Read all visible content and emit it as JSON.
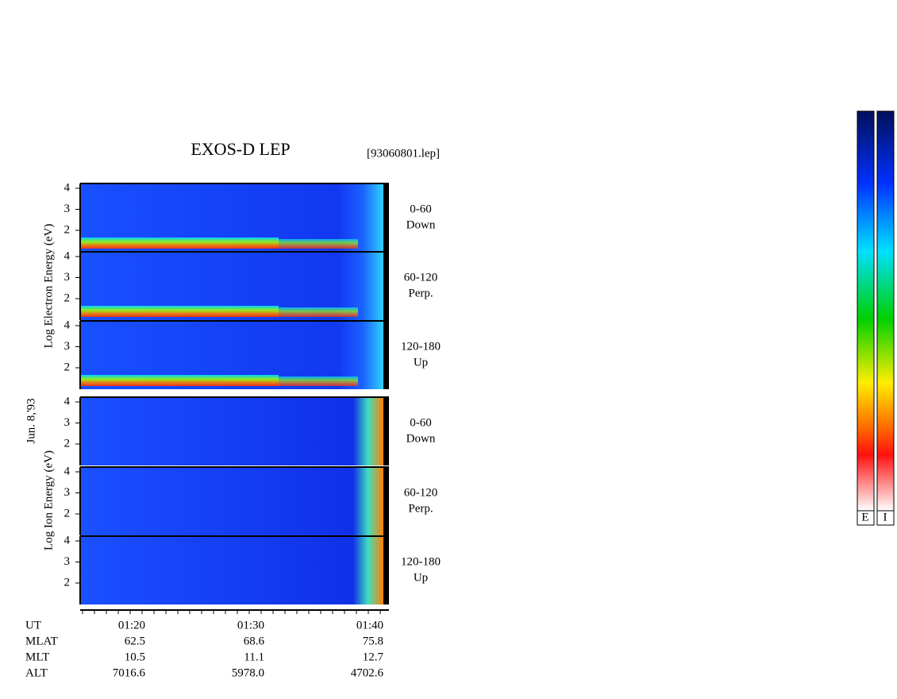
{
  "title": "EXOS-D LEP",
  "file": "[93060801.lep]",
  "date": "Jun. 8,'93",
  "electron_axis_label": "Log  Electron  Energy (eV)",
  "ion_axis_label": "Log  Ion  Energy (eV)",
  "yticks": [
    2,
    3,
    4
  ],
  "panels": [
    {
      "angle": "0-60",
      "direction": "Down"
    },
    {
      "angle": "60-120",
      "direction": "Perp."
    },
    {
      "angle": "120-180",
      "direction": "Up"
    },
    {
      "angle": "0-60",
      "direction": "Down"
    },
    {
      "angle": "60-120",
      "direction": "Perp."
    },
    {
      "angle": "120-180",
      "direction": "Up"
    }
  ],
  "time_label": "UT",
  "time_ticks": [
    "01:20",
    "01:30",
    "01:40"
  ],
  "orbit": [
    {
      "name": "MLAT",
      "values": [
        "62.5",
        "68.6",
        "75.8"
      ]
    },
    {
      "name": "MLT",
      "values": [
        "10.5",
        "11.1",
        "12.7"
      ]
    },
    {
      "name": "ALT",
      "values": [
        "7016.6",
        "5978.0",
        "4702.6"
      ]
    }
  ],
  "colorbar_labels": [
    "E",
    "I"
  ]
}
